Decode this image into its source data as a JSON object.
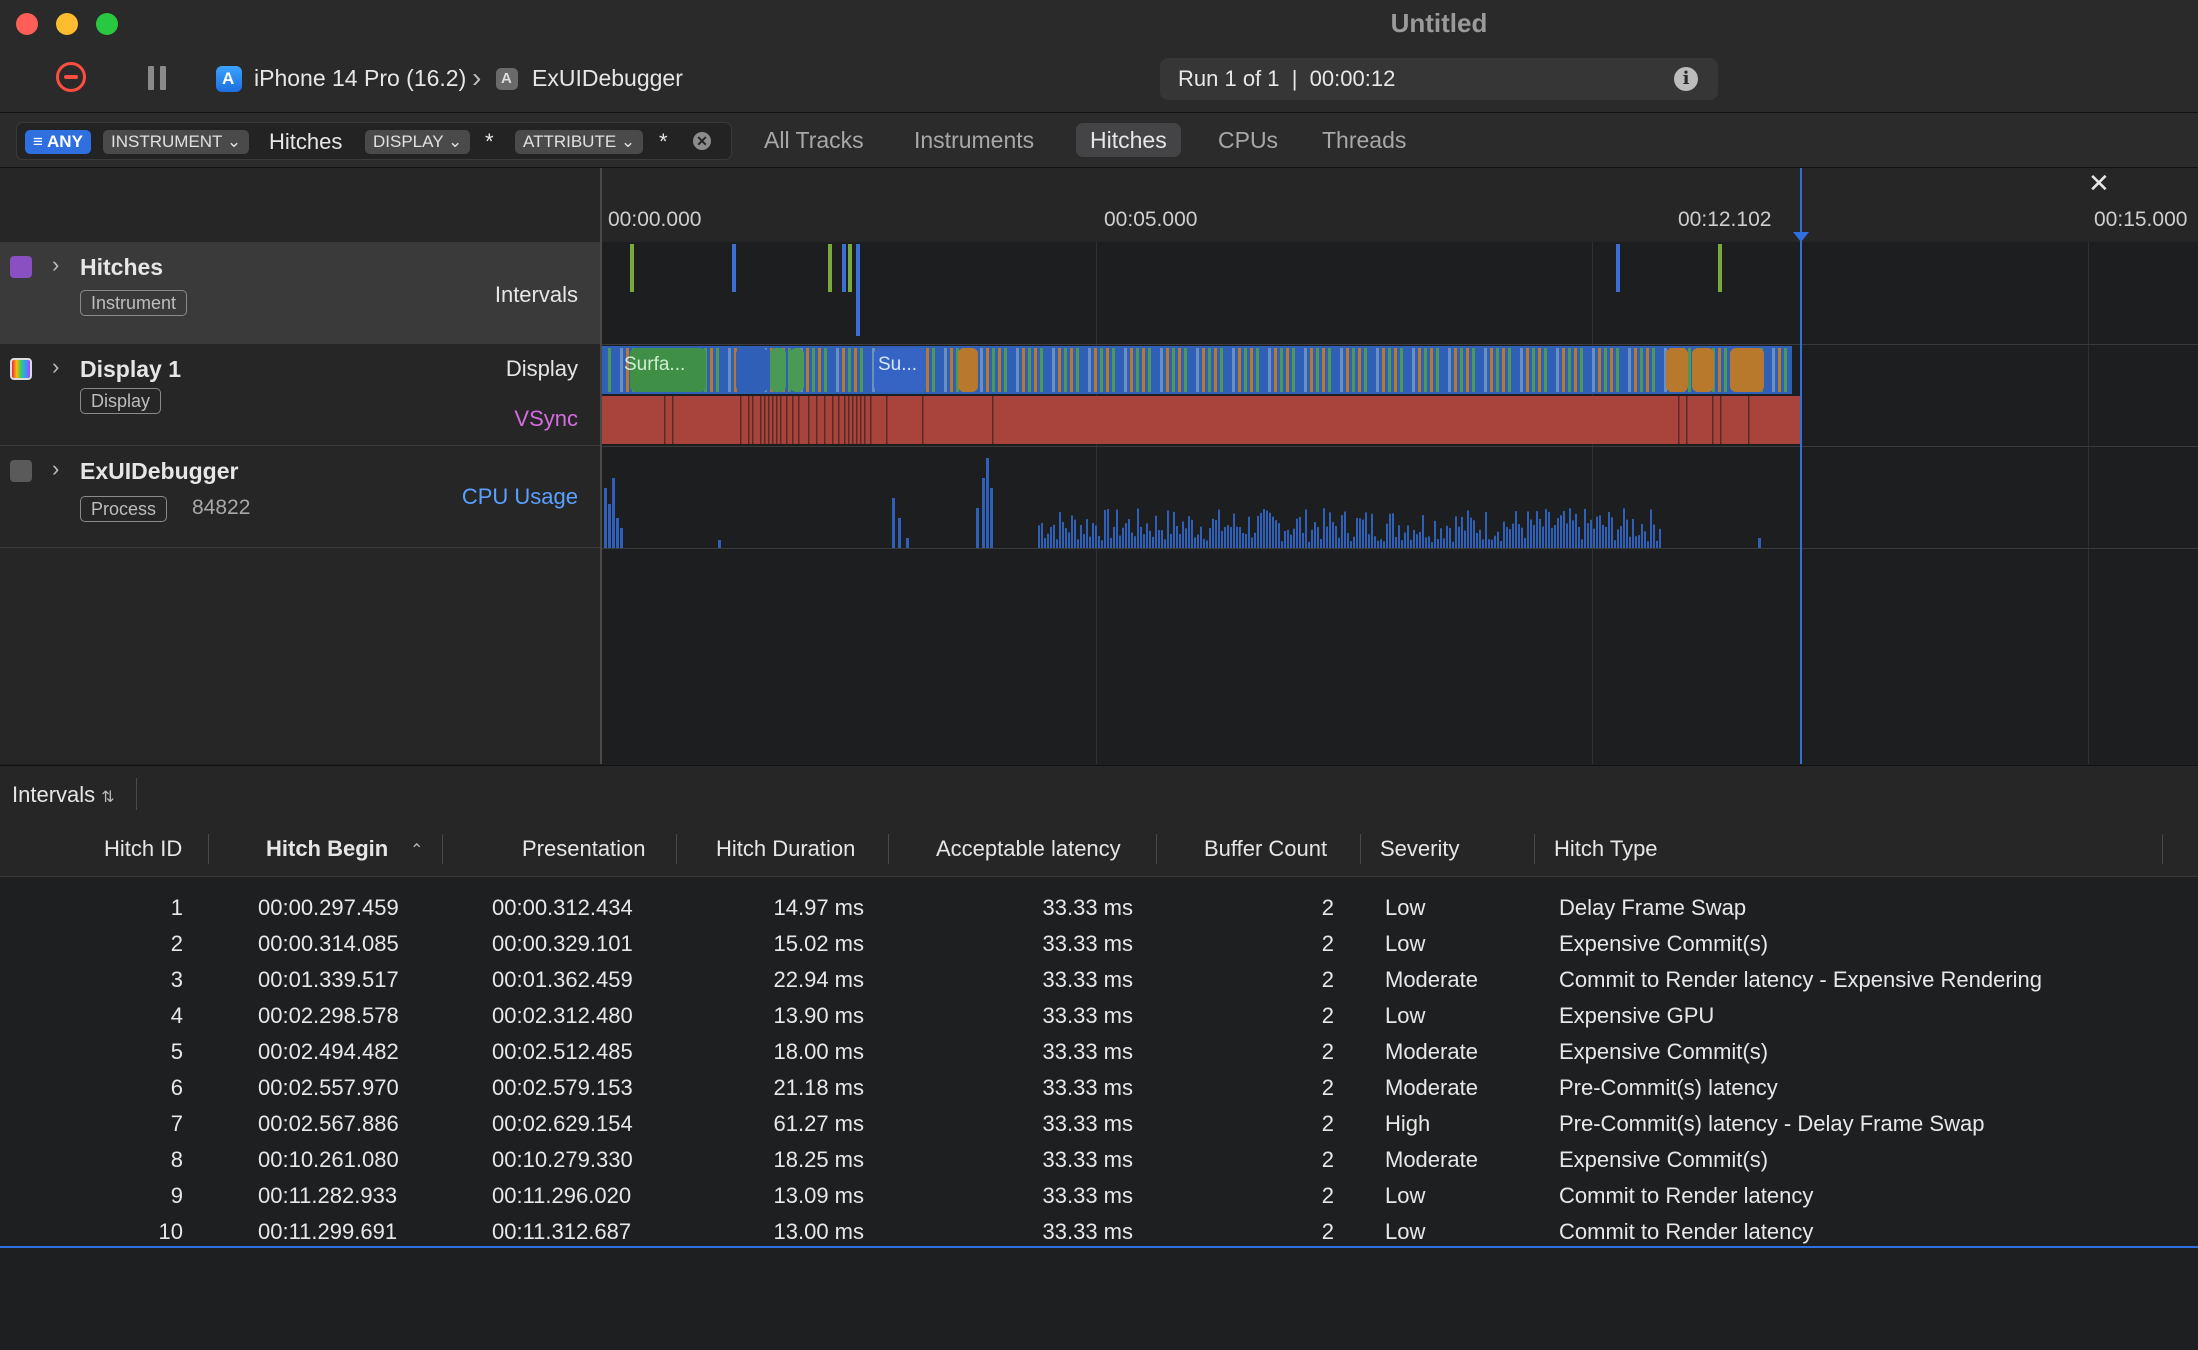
{
  "window": {
    "title": "Untitled",
    "traffic_light_colors": [
      "#ff5f57",
      "#febc2e",
      "#28c840"
    ]
  },
  "toolbar": {
    "device": "iPhone 14 Pro (16.2)",
    "app": "ExUIDebugger",
    "run_status": "Run 1 of 1  |  00:00:12"
  },
  "filter": {
    "any": "ANY",
    "instrument": "INSTRUMENT",
    "instrument_value": "Hitches",
    "display": "DISPLAY",
    "display_value": "*",
    "attribute": "ATTRIBUTE",
    "attribute_value": "*"
  },
  "view_tabs": [
    {
      "label": "All Tracks",
      "active": false
    },
    {
      "label": "Instruments",
      "active": false
    },
    {
      "label": "Hitches",
      "active": true
    },
    {
      "label": "CPUs",
      "active": false
    },
    {
      "label": "Threads",
      "active": false
    }
  ],
  "ruler": {
    "labels": [
      "00:00.000",
      "00:05.000",
      "00:12.102",
      "00:15.000"
    ]
  },
  "tracks": {
    "hitches": {
      "title": "Hitches",
      "badge": "Instrument",
      "lane": "Intervals"
    },
    "display": {
      "title": "Display 1",
      "badge": "Display",
      "lane1": "Display",
      "lane2": "VSync",
      "surface_label_1": "Surfa...",
      "surface_label_2": "Su..."
    },
    "process": {
      "title": "ExUIDebugger",
      "badge": "Process",
      "pid": "84822",
      "lane": "CPU Usage"
    }
  },
  "detail": {
    "selector": "Intervals",
    "columns": [
      "Hitch ID",
      "Hitch Begin",
      "Presentation",
      "Hitch Duration",
      "Acceptable latency",
      "Buffer Count",
      "Severity",
      "Hitch Type"
    ],
    "rows": [
      [
        "1",
        "00:00.297.459",
        "00:00.312.434",
        "14.97 ms",
        "33.33 ms",
        "2",
        "Low",
        "Delay Frame Swap"
      ],
      [
        "2",
        "00:00.314.085",
        "00:00.329.101",
        "15.02 ms",
        "33.33 ms",
        "2",
        "Low",
        "Expensive Commit(s)"
      ],
      [
        "3",
        "00:01.339.517",
        "00:01.362.459",
        "22.94 ms",
        "33.33 ms",
        "2",
        "Moderate",
        "Commit to Render latency - Expensive Rendering"
      ],
      [
        "4",
        "00:02.298.578",
        "00:02.312.480",
        "13.90 ms",
        "33.33 ms",
        "2",
        "Low",
        "Expensive GPU"
      ],
      [
        "5",
        "00:02.494.482",
        "00:02.512.485",
        "18.00 ms",
        "33.33 ms",
        "2",
        "Moderate",
        "Expensive Commit(s)"
      ],
      [
        "6",
        "00:02.557.970",
        "00:02.579.153",
        "21.18 ms",
        "33.33 ms",
        "2",
        "Moderate",
        "Pre-Commit(s) latency"
      ],
      [
        "7",
        "00:02.567.886",
        "00:02.629.154",
        "61.27 ms",
        "33.33 ms",
        "2",
        "High",
        "Pre-Commit(s) latency - Delay Frame Swap"
      ],
      [
        "8",
        "00:10.261.080",
        "00:10.279.330",
        "18.25 ms",
        "33.33 ms",
        "2",
        "Moderate",
        "Expensive Commit(s)"
      ],
      [
        "9",
        "00:11.282.933",
        "00:11.296.020",
        "13.09 ms",
        "33.33 ms",
        "2",
        "Low",
        "Commit to Render latency"
      ],
      [
        "10",
        "00:11.299.691",
        "00:11.312.687",
        "13.00 ms",
        "33.33 ms",
        "2",
        "Low",
        "Commit to Render latency"
      ]
    ]
  },
  "colors": {
    "accent": "#2f6fdf",
    "vsync": "#a8443c",
    "display_label": "#e6e6e6",
    "vsync_label": "#d56be0",
    "cpu_label": "#5aa0ff",
    "hitch_green": "#7aa83b",
    "hitch_blue": "#3b6fd6",
    "orange": "#b8792c",
    "green": "#4a9a55",
    "blue": "#2f5fb7"
  }
}
